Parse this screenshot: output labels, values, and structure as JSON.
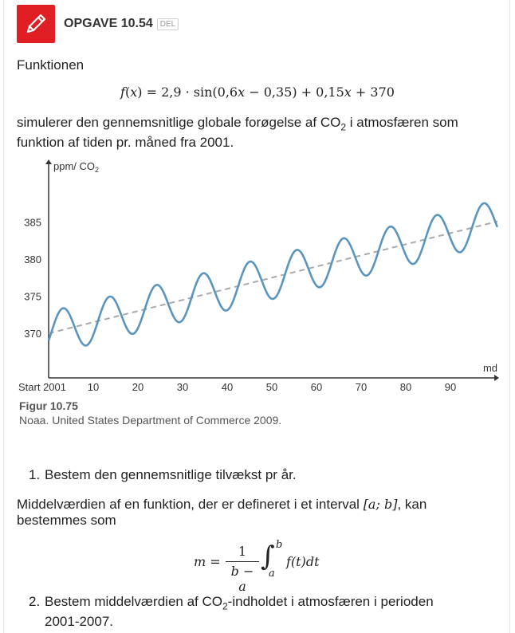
{
  "header": {
    "title": "OPGAVE 10.54",
    "badge": "DEL",
    "icon": "pencil-icon",
    "accent": "#e01e23"
  },
  "intro": "Funktionen",
  "formula": {
    "lhs": "f",
    "var": "x",
    "p1": "2,9 · sin(0,6",
    "p2": " − 0,35) + 0,15",
    "p3": " + 370"
  },
  "desc": {
    "a": "simulerer den gennemsnitlige globale forøgelse af CO",
    "sub": "2",
    "b": " i atmosfæren som",
    "line2": "funktion af tiden pr. måned fra 2001."
  },
  "chart_data": {
    "type": "line",
    "ylabel_main": "ppm/ CO",
    "ylabel_sub": "2",
    "xlabel": "md",
    "xlim": [
      0,
      100
    ],
    "ylim": [
      364,
      393
    ],
    "yticks": [
      370,
      375,
      380,
      385
    ],
    "xticks": [
      {
        "v": 0,
        "label": "Start 2001"
      },
      {
        "v": 10,
        "label": "10"
      },
      {
        "v": 20,
        "label": "20"
      },
      {
        "v": 30,
        "label": "30"
      },
      {
        "v": 40,
        "label": "40"
      },
      {
        "v": 50,
        "label": "50"
      },
      {
        "v": 60,
        "label": "60"
      },
      {
        "v": 70,
        "label": "70"
      },
      {
        "v": 80,
        "label": "80"
      },
      {
        "v": 90,
        "label": "90"
      }
    ],
    "series": [
      {
        "function": "2.9*sin(0.6x-0.35)+0.15x+370",
        "color": "#5a95bf",
        "style": "solid"
      },
      {
        "function": "0.15x+370",
        "color": "#aaaaaa",
        "style": "dashed"
      }
    ],
    "grid": false
  },
  "figure": {
    "label": "Figur 10.75",
    "source": "Noaa. United States Department of Commerce 2009."
  },
  "q1": {
    "num": "1.",
    "text": "Bestem den gennemsnitlige tilvækst pr år."
  },
  "mean": {
    "line1_a": "Middelværdien af en funktion, der er defineret i et interval ",
    "interval": "[a; b]",
    "line1_b": ", kan",
    "line2": "bestemmes som",
    "m": "m =",
    "num": "1",
    "den": "b − a",
    "upper": "b",
    "lower": "a",
    "integrand": "f(t)dt"
  },
  "q2": {
    "num": "2.",
    "a": "Bestem middelværdien af CO",
    "sub": "2",
    "b": "-indholdet i atmosfæren i perioden",
    "line2": "2001-2007."
  }
}
